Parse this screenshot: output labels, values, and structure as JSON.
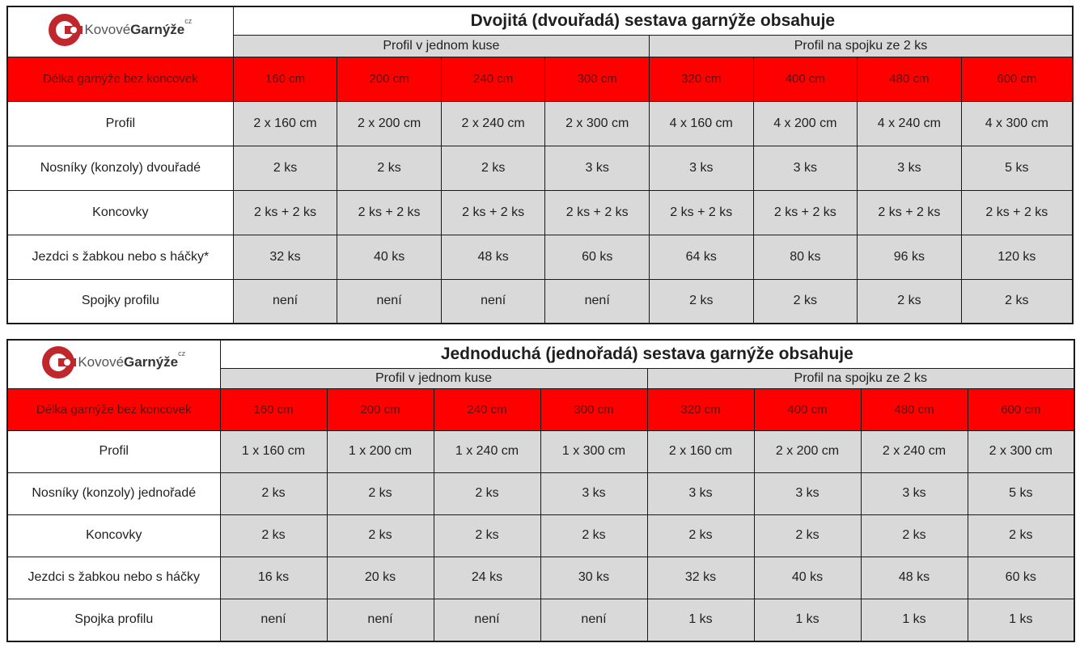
{
  "logo": {
    "text_plain": "Kovové",
    "text_bold": "Garnýže",
    "text_sup": "cz"
  },
  "tables": [
    {
      "title": "Dvojitá (dvouřadá) sestava garnýže obsahuje",
      "groups": [
        "Profil v jednom kuse",
        "Profil na spojku ze 2 ks"
      ],
      "rows": [
        {
          "label": "Délka garnýže bez koncovek",
          "values": [
            "160 cm",
            "200 cm",
            "240 cm",
            "300 cm",
            "320 cm",
            "400 cm",
            "480 cm",
            "600 cm"
          ]
        },
        {
          "label": "Profil",
          "values": [
            "2 x 160 cm",
            "2 x 200 cm",
            "2 x 240 cm",
            "2 x 300 cm",
            "4 x 160 cm",
            "4 x 200 cm",
            "4 x 240 cm",
            "4 x 300 cm"
          ]
        },
        {
          "label": "Nosníky (konzoly) dvouřadé",
          "values": [
            "2 ks",
            "2 ks",
            "2 ks",
            "3 ks",
            "3 ks",
            "3 ks",
            "3 ks",
            "5 ks"
          ]
        },
        {
          "label": "Koncovky",
          "values": [
            "2 ks + 2 ks",
            "2 ks + 2 ks",
            "2 ks + 2 ks",
            "2 ks + 2 ks",
            "2 ks + 2 ks",
            "2 ks + 2 ks",
            "2 ks + 2 ks",
            "2 ks + 2 ks"
          ]
        },
        {
          "label": "Jezdci s žabkou nebo s háčky*",
          "values": [
            "32 ks",
            "40 ks",
            "48 ks",
            "60 ks",
            "64 ks",
            "80 ks",
            "96 ks",
            "120 ks"
          ]
        },
        {
          "label": "Spojky profilu",
          "values": [
            "není",
            "není",
            "není",
            "není",
            "2 ks",
            "2 ks",
            "2 ks",
            "2 ks"
          ]
        }
      ]
    },
    {
      "title": "Jednoduchá (jednořadá) sestava garnýže obsahuje",
      "groups": [
        "Profil v jednom kuse",
        "Profil na spojku ze 2 ks"
      ],
      "rows": [
        {
          "label": "Délka garnýže bez koncovek",
          "values": [
            "160 cm",
            "200 cm",
            "240 cm",
            "300 cm",
            "320 cm",
            "400 cm",
            "480 cm",
            "600 cm"
          ]
        },
        {
          "label": "Profil",
          "values": [
            "1 x 160 cm",
            "1 x 200 cm",
            "1 x 240 cm",
            "1 x 300 cm",
            "2 x 160 cm",
            "2 x 200 cm",
            "2 x 240 cm",
            "2 x 300 cm"
          ]
        },
        {
          "label": "Nosníky (konzoly) jednořadé",
          "values": [
            "2 ks",
            "2 ks",
            "2 ks",
            "3 ks",
            "3 ks",
            "3 ks",
            "3 ks",
            "5 ks"
          ]
        },
        {
          "label": "Koncovky",
          "values": [
            "2 ks",
            "2 ks",
            "2 ks",
            "2 ks",
            "2 ks",
            "2 ks",
            "2 ks",
            "2 ks"
          ]
        },
        {
          "label": "Jezdci s žabkou nebo s háčky",
          "values": [
            "16 ks",
            "20 ks",
            "24 ks",
            "30 ks",
            "32 ks",
            "40 ks",
            "48 ks",
            "60 ks"
          ]
        },
        {
          "label": "Spojka profilu",
          "values": [
            "není",
            "není",
            "není",
            "není",
            "1 ks",
            "1 ks",
            "1 ks",
            "1 ks"
          ]
        }
      ]
    }
  ]
}
